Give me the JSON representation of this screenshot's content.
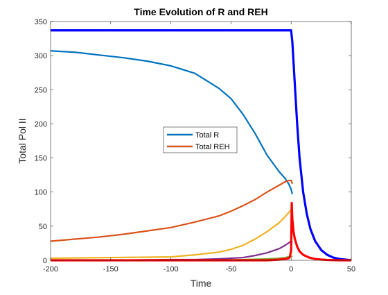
{
  "chart_data": {
    "type": "line",
    "title": "Time Evolution of R and REH",
    "xlabel": "Time",
    "ylabel": "Total Pol II",
    "xlim": [
      -200,
      50
    ],
    "ylim": [
      0,
      350
    ],
    "xticks": [
      -200,
      -150,
      -100,
      -50,
      0,
      50
    ],
    "yticks": [
      0,
      50,
      100,
      150,
      200,
      250,
      300,
      350
    ],
    "grid": false,
    "legend_position": "center",
    "series": [
      {
        "name": "Total R",
        "color": "#0072BD",
        "x": [
          -200,
          -180,
          -160,
          -140,
          -120,
          -100,
          -80,
          -60,
          -50,
          -40,
          -30,
          -20,
          -10,
          -5,
          -2,
          0,
          1
        ],
        "values": [
          307,
          305,
          301,
          297,
          292,
          285,
          274,
          252,
          237,
          214,
          186,
          154,
          130,
          120,
          112,
          104,
          97
        ]
      },
      {
        "name": "Total REH",
        "color": "#D95319",
        "x": [
          -200,
          -180,
          -160,
          -140,
          -120,
          -100,
          -80,
          -60,
          -50,
          -40,
          -30,
          -20,
          -10,
          -5,
          -2,
          0,
          1
        ],
        "values": [
          28,
          31,
          34,
          38,
          43,
          48,
          56,
          65,
          72,
          80,
          89,
          100,
          110,
          115,
          117,
          117,
          112
        ]
      },
      {
        "color": "#EDB120",
        "x": [
          -200,
          -150,
          -100,
          -80,
          -60,
          -50,
          -40,
          -30,
          -20,
          -10,
          -5,
          0,
          1
        ],
        "values": [
          3,
          4,
          5,
          8,
          12,
          16,
          22,
          31,
          42,
          55,
          64,
          74,
          70
        ]
      },
      {
        "color": "#7E2F8E",
        "x": [
          -200,
          -150,
          -100,
          -80,
          -60,
          -40,
          -30,
          -20,
          -10,
          -5,
          0,
          1
        ],
        "values": [
          0,
          0,
          1,
          1,
          2,
          4,
          7,
          11,
          17,
          22,
          28,
          26
        ]
      },
      {
        "color": "#77AC30",
        "x": [
          -200,
          -100,
          -60,
          -40,
          -20,
          -10,
          -5,
          0,
          1
        ],
        "values": [
          0,
          0,
          0,
          1,
          2,
          3,
          4,
          6,
          5
        ]
      },
      {
        "color": "#0000FF",
        "x": [
          -200,
          -150,
          -100,
          -50,
          -10,
          -2,
          -1,
          0,
          1,
          2,
          3,
          5,
          7,
          10,
          13,
          16,
          20,
          25,
          30,
          35,
          40,
          45,
          50
        ],
        "values": [
          337,
          337,
          337,
          337,
          337,
          337,
          337,
          337,
          320,
          290,
          260,
          200,
          150,
          100,
          68,
          46,
          28,
          15,
          8,
          4,
          2,
          1,
          0
        ]
      },
      {
        "color": "#FF0000",
        "x": [
          -200,
          -100,
          -50,
          -20,
          -10,
          -5,
          -2,
          -1,
          0,
          0.5,
          1,
          2,
          3,
          5,
          7,
          10,
          15,
          20,
          25,
          30,
          40,
          50
        ],
        "values": [
          0,
          0,
          0,
          0,
          1,
          2,
          3,
          5,
          15,
          84,
          60,
          42,
          32,
          20,
          13,
          8,
          4,
          2,
          1,
          0.5,
          0,
          0
        ]
      }
    ]
  }
}
